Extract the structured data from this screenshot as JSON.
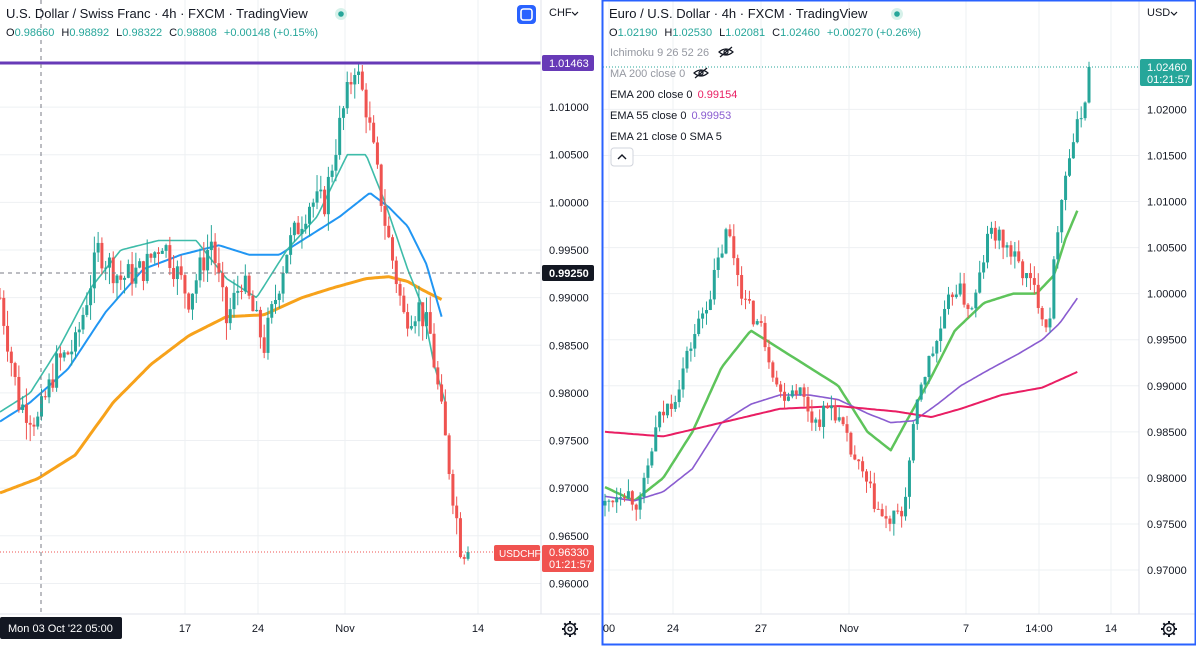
{
  "colors": {
    "up": "#26a69a",
    "down": "#ef5350",
    "grid": "#eef0f3",
    "axis_text": "#131722",
    "orange_ma": "#f7a21b",
    "blue_ma": "#2196f3",
    "teal_ma": "#3ebca9",
    "green_ema": "#5ec45b",
    "purple_ema": "#8a5cd0",
    "crimson_ema": "#e91e63",
    "purple_line": "#673ab7",
    "selected_border": "#2962ff",
    "label_red": "#f05350",
    "label_dark": "#131722"
  },
  "left_panel": {
    "title": "U.S. Dollar / Swiss Franc · 4h · FXCM · TradingView",
    "ohlc": {
      "o_label": "O",
      "o": "0.98660",
      "h_label": "H",
      "h": "0.98892",
      "l_label": "L",
      "l": "0.98322",
      "c_label": "C",
      "c": "0.98808",
      "change": "+0.00148 (+0.15%)"
    },
    "currency": "CHF",
    "price_labels": {
      "purple_line": "1.01463",
      "crosshair": "0.99250",
      "symbol_tag": "USDCHF",
      "last_price": "0.96330",
      "countdown": "01:21:57"
    },
    "date_badge": "Mon 03 Oct '22  05:00",
    "gear_icon": "gear-icon",
    "compare_icon": "square-icon"
  },
  "right_panel": {
    "title": "Euro / U.S. Dollar · 4h · FXCM · TradingView",
    "ohlc": {
      "o_label": "O",
      "o": "1.02190",
      "h_label": "H",
      "h": "1.02530",
      "l_label": "L",
      "l": "1.02081",
      "c_label": "C",
      "c": "1.02460",
      "change": "+0.00270 (+0.26%)"
    },
    "currency": "USD",
    "indicators": [
      {
        "label": "Ichimoku 9 26 52 26",
        "value": "",
        "hidden": true
      },
      {
        "label": "MA 200 close 0",
        "value": "",
        "hidden": true
      },
      {
        "label": "EMA 200 close 0",
        "value": "0.99154",
        "value_color": "#e91e63"
      },
      {
        "label": "EMA 55 close 0",
        "value": "0.99953",
        "value_color": "#8a5cd0"
      },
      {
        "label": "EMA 21 close 0 SMA 5",
        "value": ""
      }
    ],
    "price_labels": {
      "last_price": "1.02460",
      "countdown": "01:21:57"
    },
    "gear_icon": "gear-icon"
  },
  "chart_data": [
    {
      "type": "candlestick",
      "title": "U.S. Dollar / Swiss Franc · 4h · FXCM · TradingView",
      "xlabel": "",
      "ylabel": "",
      "ylim": [
        0.957,
        1.0205
      ],
      "y_ticks": [
        "0.96000",
        "0.96500",
        "0.97000",
        "0.97500",
        "0.98000",
        "0.98500",
        "0.99000",
        "0.99500",
        "1.00000",
        "1.00500",
        "1.01000"
      ],
      "x_ticks": [
        "17",
        "24",
        "Nov",
        "14"
      ],
      "grid": true,
      "horizontal_line": 1.01463,
      "crosshair_price": 0.9925,
      "last_price": 0.9633,
      "anchors": [
        [
          0,
          0.99
        ],
        [
          5,
          0.979
        ],
        [
          10,
          0.977
        ],
        [
          15,
          0.983
        ],
        [
          20,
          0.985
        ],
        [
          26,
          0.995
        ],
        [
          32,
          0.992
        ],
        [
          38,
          0.993
        ],
        [
          43,
          0.996
        ],
        [
          50,
          0.99
        ],
        [
          56,
          0.996
        ],
        [
          60,
          0.9875
        ],
        [
          64,
          0.992
        ],
        [
          70,
          0.985
        ],
        [
          76,
          0.995
        ],
        [
          82,
          1.0
        ],
        [
          86,
          1.0
        ],
        [
          90,
          1.008
        ],
        [
          94,
          1.0145
        ],
        [
          97,
          1.01
        ],
        [
          102,
          0.998
        ],
        [
          107,
          0.988
        ],
        [
          111,
          0.989
        ],
        [
          114,
          0.986
        ],
        [
          118,
          0.975
        ],
        [
          122,
          0.964
        ],
        [
          124,
          0.9633
        ]
      ],
      "series": [
        {
          "name": "MA (orange)",
          "anchors": [
            [
              0,
              0.9695
            ],
            [
              10,
              0.971
            ],
            [
              20,
              0.9735
            ],
            [
              30,
              0.979
            ],
            [
              40,
              0.983
            ],
            [
              50,
              0.986
            ],
            [
              60,
              0.988
            ],
            [
              70,
              0.9882
            ],
            [
              80,
              0.99
            ],
            [
              88,
              0.991
            ],
            [
              97,
              0.992
            ],
            [
              103,
              0.9922
            ],
            [
              108,
              0.9917
            ],
            [
              112,
              0.9908
            ],
            [
              117,
              0.9898
            ]
          ]
        },
        {
          "name": "MA (blue)",
          "anchors": [
            [
              0,
              0.977
            ],
            [
              8,
              0.979
            ],
            [
              18,
              0.9825
            ],
            [
              28,
              0.9885
            ],
            [
              38,
              0.993
            ],
            [
              48,
              0.9945
            ],
            [
              58,
              0.9955
            ],
            [
              66,
              0.9945
            ],
            [
              74,
              0.9945
            ],
            [
              82,
              0.9965
            ],
            [
              90,
              0.9985
            ],
            [
              98,
              1.001
            ],
            [
              103,
              0.9995
            ],
            [
              108,
              0.9975
            ],
            [
              113,
              0.9935
            ],
            [
              117,
              0.988
            ]
          ]
        },
        {
          "name": "MA (teal)",
          "anchors": [
            [
              0,
              0.978
            ],
            [
              8,
              0.98
            ],
            [
              16,
              0.985
            ],
            [
              24,
              0.991
            ],
            [
              32,
              0.995
            ],
            [
              42,
              0.996
            ],
            [
              52,
              0.996
            ],
            [
              60,
              0.992
            ],
            [
              68,
              0.99
            ],
            [
              76,
              0.995
            ],
            [
              84,
              0.9985
            ],
            [
              92,
              1.005
            ],
            [
              97,
              1.005
            ],
            [
              102,
              1.0
            ],
            [
              108,
              0.993
            ],
            [
              112,
              0.989
            ],
            [
              115,
              0.983
            ],
            [
              118,
              0.979
            ]
          ]
        }
      ]
    },
    {
      "type": "candlestick",
      "title": "Euro / U.S. Dollar · 4h · FXCM · TradingView",
      "xlabel": "",
      "ylabel": "",
      "ylim": [
        0.9665,
        1.031
      ],
      "y_ticks": [
        "0.97000",
        "0.97500",
        "0.98000",
        "0.98500",
        "0.99000",
        "0.99500",
        "1.00000",
        "1.00500",
        "1.01000",
        "1.01500",
        "1.02000"
      ],
      "x_ticks": [
        "00",
        "24",
        "27",
        "Nov",
        "7",
        "14:00",
        "14"
      ],
      "grid": true,
      "last_price": 1.0246,
      "anchors": [
        [
          0,
          0.977
        ],
        [
          6,
          0.979
        ],
        [
          12,
          0.977
        ],
        [
          18,
          0.986
        ],
        [
          24,
          0.989
        ],
        [
          30,
          0.995
        ],
        [
          36,
          1.0
        ],
        [
          42,
          1.007
        ],
        [
          48,
          0.999
        ],
        [
          54,
          0.996
        ],
        [
          60,
          0.989
        ],
        [
          66,
          0.99
        ],
        [
          72,
          0.986
        ],
        [
          78,
          0.988
        ],
        [
          84,
          0.983
        ],
        [
          90,
          0.979
        ],
        [
          96,
          0.975
        ],
        [
          102,
          0.976
        ],
        [
          108,
          0.99
        ],
        [
          114,
          0.995
        ],
        [
          120,
          1.001
        ],
        [
          126,
          0.998
        ],
        [
          132,
          1.007
        ],
        [
          138,
          1.005
        ],
        [
          144,
          1.002
        ],
        [
          148,
          1.0
        ],
        [
          152,
          0.996
        ],
        [
          156,
          1.01
        ],
        [
          160,
          1.016
        ],
        [
          164,
          1.02
        ],
        [
          166,
          1.0246
        ]
      ],
      "series": [
        {
          "name": "EMA 21",
          "anchors": [
            [
              0,
              0.979
            ],
            [
              10,
              0.9775
            ],
            [
              20,
              0.98
            ],
            [
              30,
              0.985
            ],
            [
              40,
              0.992
            ],
            [
              50,
              0.996
            ],
            [
              60,
              0.994
            ],
            [
              70,
              0.992
            ],
            [
              80,
              0.99
            ],
            [
              90,
              0.985
            ],
            [
              98,
              0.983
            ],
            [
              104,
              0.9865
            ],
            [
              112,
              0.991
            ],
            [
              120,
              0.996
            ],
            [
              130,
              0.999
            ],
            [
              140,
              1.0
            ],
            [
              148,
              1.0
            ],
            [
              154,
              1.002
            ],
            [
              158,
              1.006
            ],
            [
              162,
              1.009
            ]
          ]
        },
        {
          "name": "EMA 55",
          "anchors": [
            [
              0,
              0.978
            ],
            [
              10,
              0.9775
            ],
            [
              20,
              0.9785
            ],
            [
              30,
              0.981
            ],
            [
              40,
              0.986
            ],
            [
              50,
              0.988
            ],
            [
              60,
              0.989
            ],
            [
              70,
              0.989
            ],
            [
              80,
              0.9885
            ],
            [
              90,
              0.987
            ],
            [
              98,
              0.986
            ],
            [
              106,
              0.9862
            ],
            [
              114,
              0.988
            ],
            [
              122,
              0.99
            ],
            [
              132,
              0.9918
            ],
            [
              142,
              0.9935
            ],
            [
              150,
              0.995
            ],
            [
              156,
              0.9968
            ],
            [
              162,
              0.9995
            ]
          ]
        },
        {
          "name": "EMA 200",
          "anchors": [
            [
              0,
              0.985
            ],
            [
              20,
              0.9845
            ],
            [
              40,
              0.986
            ],
            [
              60,
              0.9875
            ],
            [
              80,
              0.9878
            ],
            [
              100,
              0.9872
            ],
            [
              112,
              0.9866
            ],
            [
              122,
              0.9875
            ],
            [
              136,
              0.989
            ],
            [
              150,
              0.9898
            ],
            [
              162,
              0.9915
            ]
          ]
        }
      ]
    }
  ]
}
